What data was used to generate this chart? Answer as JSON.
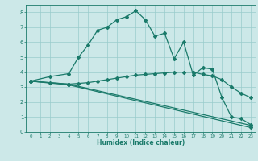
{
  "title": "",
  "xlabel": "Humidex (Indice chaleur)",
  "background_color": "#cce8e8",
  "grid_color": "#99cccc",
  "line_color": "#1a7a6a",
  "xlim": [
    -0.5,
    23.5
  ],
  "ylim": [
    0,
    8.5
  ],
  "xticks": [
    0,
    1,
    2,
    3,
    4,
    5,
    6,
    7,
    8,
    9,
    10,
    11,
    12,
    13,
    14,
    15,
    16,
    17,
    18,
    19,
    20,
    21,
    22,
    23
  ],
  "yticks": [
    0,
    1,
    2,
    3,
    4,
    5,
    6,
    7,
    8
  ],
  "line1_x": [
    0,
    2,
    4,
    5,
    6,
    7,
    8,
    9,
    10,
    11,
    12,
    13,
    14,
    15,
    16,
    17,
    18,
    19,
    20,
    21,
    22,
    23
  ],
  "line1_y": [
    3.4,
    3.7,
    3.9,
    5.0,
    5.8,
    6.8,
    7.0,
    7.5,
    7.7,
    8.1,
    7.5,
    6.4,
    6.6,
    4.9,
    6.0,
    3.8,
    4.3,
    4.2,
    2.3,
    1.0,
    0.9,
    0.5
  ],
  "line2_x": [
    0,
    2,
    4,
    5,
    6,
    7,
    8,
    9,
    10,
    11,
    12,
    13,
    14,
    15,
    16,
    17,
    18,
    19,
    20,
    21,
    22,
    23
  ],
  "line2_y": [
    3.4,
    3.3,
    3.2,
    3.25,
    3.3,
    3.4,
    3.5,
    3.6,
    3.7,
    3.8,
    3.85,
    3.9,
    3.95,
    4.0,
    4.0,
    4.0,
    3.85,
    3.75,
    3.5,
    3.0,
    2.6,
    2.3
  ],
  "line3_x": [
    0,
    4,
    23
  ],
  "line3_y": [
    3.4,
    3.2,
    0.45
  ],
  "line4_x": [
    0,
    4,
    23
  ],
  "line4_y": [
    3.4,
    3.15,
    0.3
  ]
}
